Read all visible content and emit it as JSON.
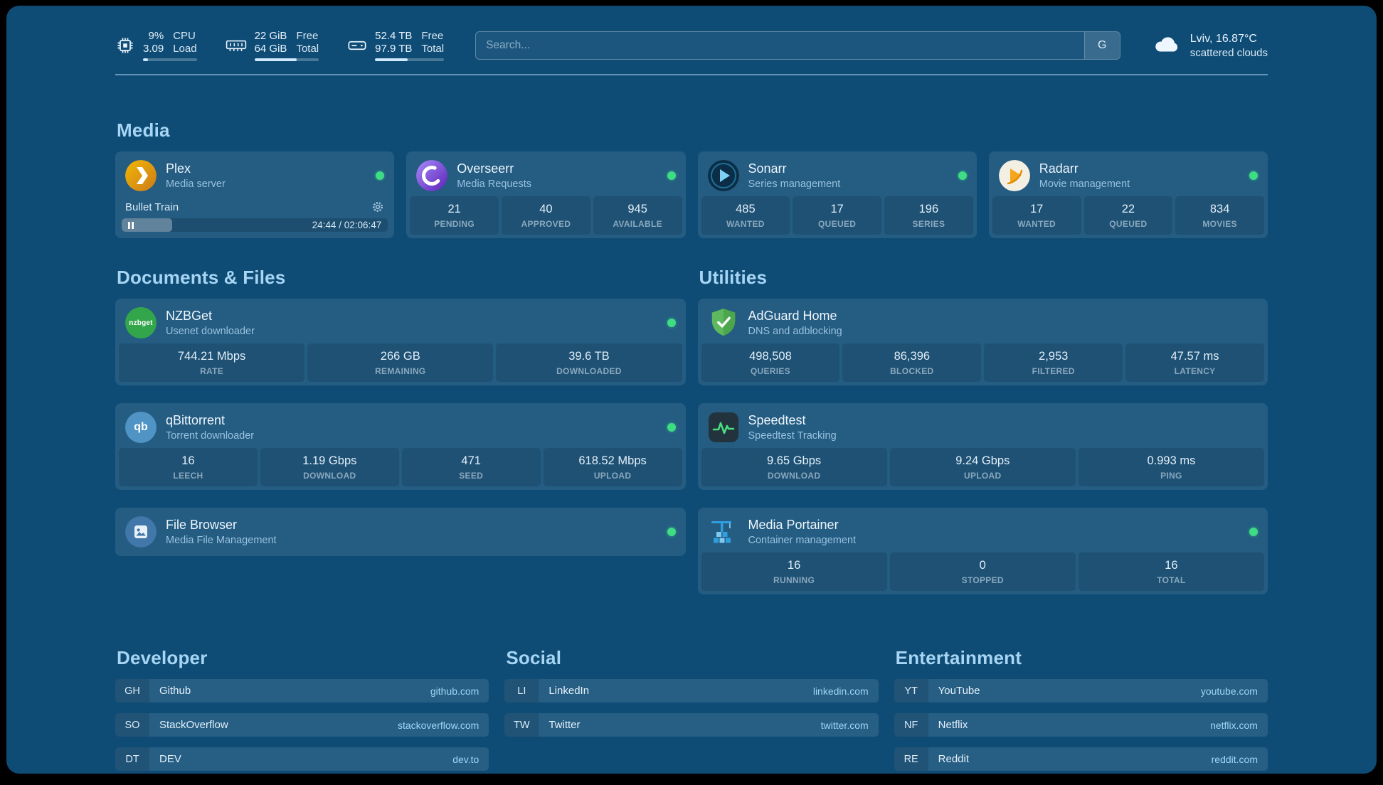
{
  "colors": {
    "background": "#0e4c76",
    "heading": "#a7d5f3",
    "status_green": "#3edc83",
    "link": "#9fd5f6"
  },
  "header": {
    "cpu": {
      "percent": "9%",
      "load": "3.09",
      "label_top": "CPU",
      "label_bottom": "Load",
      "progress": 9
    },
    "memory": {
      "free": "22 GiB",
      "total": "64 GiB",
      "label_top": "Free",
      "label_bottom": "Total",
      "progress": 66
    },
    "disk": {
      "free": "52.4 TB",
      "total": "97.9 TB",
      "label_top": "Free",
      "label_bottom": "Total",
      "progress": 47
    },
    "search": {
      "placeholder": "Search...",
      "button_label": "G"
    },
    "weather": {
      "location": "Lviv, 16.87°C",
      "condition": "scattered clouds"
    }
  },
  "media": {
    "title": "Media",
    "plex": {
      "title": "Plex",
      "subtitle": "Media server",
      "now_playing": "Bullet Train",
      "time": "24:44 / 02:06:47",
      "progress": 19
    },
    "overseerr": {
      "title": "Overseerr",
      "subtitle": "Media Requests",
      "stats": [
        {
          "value": "21",
          "label": "PENDING"
        },
        {
          "value": "40",
          "label": "APPROVED"
        },
        {
          "value": "945",
          "label": "AVAILABLE"
        }
      ]
    },
    "sonarr": {
      "title": "Sonarr",
      "subtitle": "Series management",
      "stats": [
        {
          "value": "485",
          "label": "WANTED"
        },
        {
          "value": "17",
          "label": "QUEUED"
        },
        {
          "value": "196",
          "label": "SERIES"
        }
      ]
    },
    "radarr": {
      "title": "Radarr",
      "subtitle": "Movie management",
      "stats": [
        {
          "value": "17",
          "label": "WANTED"
        },
        {
          "value": "22",
          "label": "QUEUED"
        },
        {
          "value": "834",
          "label": "MOVIES"
        }
      ]
    }
  },
  "documents": {
    "title": "Documents & Files",
    "nzbget": {
      "title": "NZBGet",
      "subtitle": "Usenet downloader",
      "icon_text": "nzbget",
      "stats": [
        {
          "value": "744.21 Mbps",
          "label": "RATE"
        },
        {
          "value": "266 GB",
          "label": "REMAINING"
        },
        {
          "value": "39.6 TB",
          "label": "DOWNLOADED"
        }
      ]
    },
    "qbittorrent": {
      "title": "qBittorrent",
      "subtitle": "Torrent downloader",
      "icon_text": "qb",
      "stats": [
        {
          "value": "16",
          "label": "LEECH"
        },
        {
          "value": "1.19 Gbps",
          "label": "DOWNLOAD"
        },
        {
          "value": "471",
          "label": "SEED"
        },
        {
          "value": "618.52 Mbps",
          "label": "UPLOAD"
        }
      ]
    },
    "filebrowser": {
      "title": "File Browser",
      "subtitle": "Media File Management"
    }
  },
  "utilities": {
    "title": "Utilities",
    "adguard": {
      "title": "AdGuard Home",
      "subtitle": "DNS and adblocking",
      "stats": [
        {
          "value": "498,508",
          "label": "QUERIES"
        },
        {
          "value": "86,396",
          "label": "BLOCKED"
        },
        {
          "value": "2,953",
          "label": "FILTERED"
        },
        {
          "value": "47.57 ms",
          "label": "LATENCY"
        }
      ]
    },
    "speedtest": {
      "title": "Speedtest",
      "subtitle": "Speedtest Tracking",
      "stats": [
        {
          "value": "9.65 Gbps",
          "label": "DOWNLOAD"
        },
        {
          "value": "9.24 Gbps",
          "label": "UPLOAD"
        },
        {
          "value": "0.993 ms",
          "label": "PING"
        }
      ]
    },
    "portainer": {
      "title": "Media Portainer",
      "subtitle": "Container management",
      "stats": [
        {
          "value": "16",
          "label": "RUNNING"
        },
        {
          "value": "0",
          "label": "STOPPED"
        },
        {
          "value": "16",
          "label": "TOTAL"
        }
      ]
    }
  },
  "bookmarks": {
    "developer": {
      "title": "Developer",
      "items": [
        {
          "abbr": "GH",
          "name": "Github",
          "url": "github.com"
        },
        {
          "abbr": "SO",
          "name": "StackOverflow",
          "url": "stackoverflow.com"
        },
        {
          "abbr": "DT",
          "name": "DEV",
          "url": "dev.to"
        }
      ]
    },
    "social": {
      "title": "Social",
      "items": [
        {
          "abbr": "LI",
          "name": "LinkedIn",
          "url": "linkedin.com"
        },
        {
          "abbr": "TW",
          "name": "Twitter",
          "url": "twitter.com"
        }
      ]
    },
    "entertainment": {
      "title": "Entertainment",
      "items": [
        {
          "abbr": "YT",
          "name": "YouTube",
          "url": "youtube.com"
        },
        {
          "abbr": "NF",
          "name": "Netflix",
          "url": "netflix.com"
        },
        {
          "abbr": "RE",
          "name": "Reddit",
          "url": "reddit.com"
        }
      ]
    }
  }
}
